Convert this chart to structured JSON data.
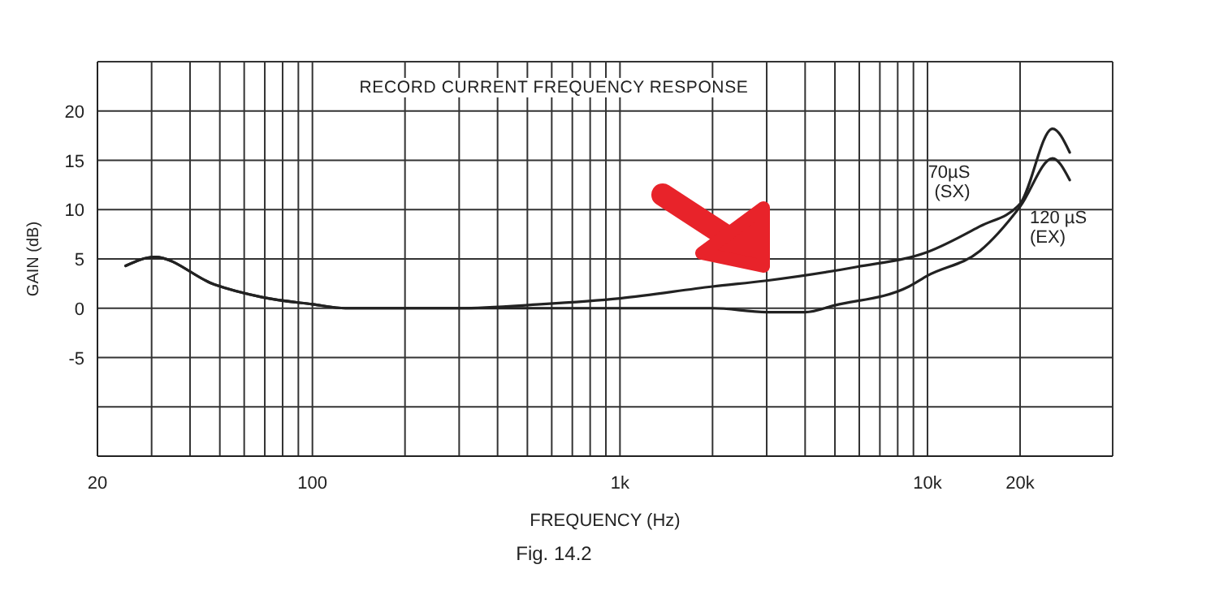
{
  "chart_data": {
    "type": "line",
    "title": "RECORD CURRENT FREQUENCY RESPONSE",
    "xlabel": "FREQUENCY  (Hz)",
    "ylabel": "GAIN (dB)",
    "annotations": [
      "Fig. 14.2"
    ],
    "log": "x",
    "grid": true,
    "marker": "none",
    "line_style": "solid",
    "xlim": [
      20,
      40000
    ],
    "xticks": [
      20,
      {
        "value": 30,
        "label": null
      },
      {
        "value": 40,
        "label": null
      },
      {
        "value": 50,
        "label": null
      },
      {
        "value": 60,
        "label": null
      },
      {
        "value": 70,
        "label": null
      },
      {
        "value": 80,
        "label": null
      },
      {
        "value": 90,
        "label": null
      },
      100,
      {
        "value": 200,
        "label": null
      },
      {
        "value": 300,
        "label": null
      },
      {
        "value": 400,
        "label": null
      },
      {
        "value": 500,
        "label": null
      },
      {
        "value": 600,
        "label": null
      },
      {
        "value": 700,
        "label": null
      },
      {
        "value": 800,
        "label": null
      },
      {
        "value": 900,
        "label": null
      },
      {
        "value": 1000,
        "label": "1k"
      },
      {
        "value": 2000,
        "label": null
      },
      {
        "value": 3000,
        "label": null
      },
      {
        "value": 4000,
        "label": null
      },
      {
        "value": 5000,
        "label": null
      },
      {
        "value": 6000,
        "label": null
      },
      {
        "value": 7000,
        "label": null
      },
      {
        "value": 8000,
        "label": null
      },
      {
        "value": 9000,
        "label": null
      },
      {
        "value": 10000,
        "label": "10k"
      },
      {
        "value": 20000,
        "label": "20k"
      }
    ],
    "ylim": [
      -15,
      25
    ],
    "yticks": [
      {
        "value": -10,
        "label": null
      },
      -5,
      0,
      5,
      10,
      15,
      20
    ],
    "series": [
      {
        "name": "70µS (SX)",
        "color": "#222222",
        "x": [
          24.7,
          30.7,
          48,
          69,
          100,
          128,
          300,
          550,
          1000,
          2000,
          3000,
          5900,
          10000,
          14800,
          20000,
          25500,
          29000
        ],
        "values": [
          4.3,
          5.2,
          2.4,
          1.1,
          0.4,
          0,
          0,
          0.4,
          1,
          2.2,
          2.8,
          4.2,
          5.7,
          8.3,
          10.6,
          18.2,
          15.8
        ]
      },
      {
        "name": "120 µS (EX)",
        "color": "#222222",
        "x": [
          24.7,
          30.7,
          48,
          69,
          100,
          128,
          300,
          1000,
          2000,
          3000,
          4000,
          5000,
          8700,
          10000,
          14800,
          20000,
          25500,
          29000
        ],
        "values": [
          4.3,
          5.2,
          2.4,
          1.1,
          0.4,
          0,
          0,
          0,
          0,
          -0.4,
          -0.4,
          0.3,
          2.2,
          3.3,
          5.8,
          10.3,
          15.2,
          13
        ]
      }
    ]
  }
}
